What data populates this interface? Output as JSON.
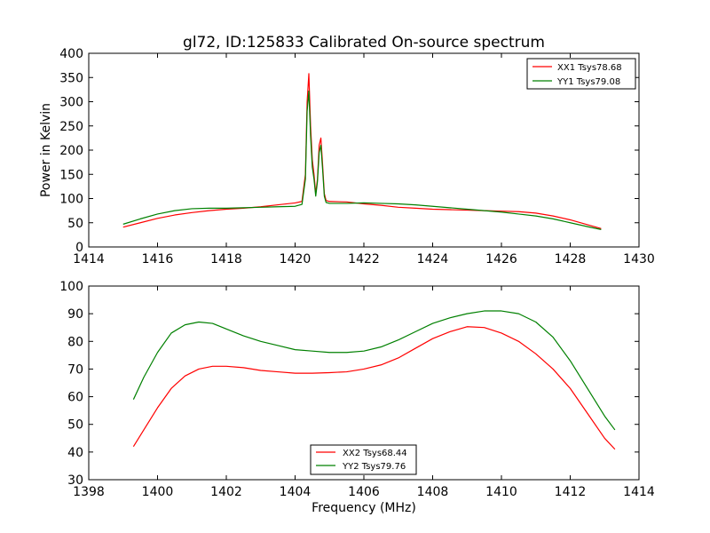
{
  "chart_data": [
    {
      "type": "line",
      "title": "gl72, ID:125833 Calibrated On-source spectrum",
      "xlabel": "",
      "ylabel": "Power in Kelvin",
      "xlim": [
        1414,
        1430
      ],
      "ylim": [
        0,
        400
      ],
      "xticks": [
        "1414",
        "1416",
        "1418",
        "1420",
        "1422",
        "1424",
        "1426",
        "1428",
        "1430"
      ],
      "yticks": [
        "0",
        "50",
        "100",
        "150",
        "200",
        "250",
        "300",
        "350",
        "400"
      ],
      "legend_position": "top-right",
      "grid": false,
      "series": [
        {
          "name": "XX1 Tsys78.68",
          "color": "#ff0000",
          "x": [
            1415.0,
            1415.5,
            1416.0,
            1416.5,
            1417.0,
            1417.5,
            1418.0,
            1418.5,
            1419.0,
            1419.5,
            1420.0,
            1420.2,
            1420.3,
            1420.35,
            1420.4,
            1420.45,
            1420.5,
            1420.55,
            1420.6,
            1420.65,
            1420.7,
            1420.75,
            1420.8,
            1420.85,
            1420.9,
            1421.0,
            1421.5,
            1422.0,
            1422.5,
            1423.0,
            1423.5,
            1424.0,
            1424.5,
            1425.0,
            1425.5,
            1426.0,
            1426.5,
            1427.0,
            1427.5,
            1428.0,
            1428.5,
            1428.9
          ],
          "y": [
            41,
            50,
            59,
            66,
            71,
            75,
            78,
            80,
            83,
            87,
            91,
            94,
            150,
            300,
            358,
            250,
            180,
            150,
            110,
            140,
            210,
            225,
            170,
            110,
            96,
            94,
            93,
            89,
            86,
            82,
            80,
            78,
            77,
            76,
            75,
            74,
            73,
            70,
            64,
            56,
            46,
            38
          ]
        },
        {
          "name": "YY1 Tsys79.08",
          "color": "#008000",
          "x": [
            1415.0,
            1415.5,
            1416.0,
            1416.5,
            1417.0,
            1417.5,
            1418.0,
            1418.5,
            1419.0,
            1419.5,
            1420.0,
            1420.2,
            1420.3,
            1420.35,
            1420.4,
            1420.45,
            1420.5,
            1420.55,
            1420.6,
            1420.65,
            1420.7,
            1420.75,
            1420.8,
            1420.85,
            1420.9,
            1421.0,
            1421.5,
            1422.0,
            1422.5,
            1423.0,
            1423.5,
            1424.0,
            1424.5,
            1425.0,
            1425.5,
            1426.0,
            1426.5,
            1427.0,
            1427.5,
            1428.0,
            1428.5,
            1428.9
          ],
          "y": [
            47,
            58,
            68,
            75,
            79,
            80,
            80,
            81,
            82,
            83,
            84,
            88,
            140,
            280,
            322,
            230,
            165,
            140,
            105,
            135,
            195,
            210,
            160,
            105,
            92,
            90,
            90,
            91,
            90,
            89,
            87,
            84,
            81,
            78,
            75,
            72,
            68,
            64,
            58,
            50,
            42,
            36
          ]
        }
      ]
    },
    {
      "type": "line",
      "title": "",
      "xlabel": "Frequency (MHz)",
      "ylabel": "",
      "xlim": [
        1398,
        1414
      ],
      "ylim": [
        30,
        100
      ],
      "xticks": [
        "1398",
        "1400",
        "1402",
        "1404",
        "1406",
        "1408",
        "1410",
        "1412",
        "1414"
      ],
      "yticks": [
        "30",
        "40",
        "50",
        "60",
        "70",
        "80",
        "90",
        "100"
      ],
      "legend_position": "bottom-center",
      "grid": false,
      "series": [
        {
          "name": "XX2 Tsys68.44",
          "color": "#ff0000",
          "x": [
            1399.3,
            1399.6,
            1400.0,
            1400.4,
            1400.8,
            1401.2,
            1401.6,
            1402.0,
            1402.5,
            1403.0,
            1403.5,
            1404.0,
            1404.5,
            1405.0,
            1405.5,
            1406.0,
            1406.5,
            1407.0,
            1407.5,
            1408.0,
            1408.5,
            1409.0,
            1409.5,
            1410.0,
            1410.5,
            1411.0,
            1411.5,
            1412.0,
            1412.5,
            1413.0,
            1413.3
          ],
          "y": [
            42,
            48,
            56,
            63,
            67.5,
            70,
            71,
            71,
            70.5,
            69.5,
            69,
            68.5,
            68.5,
            68.7,
            69,
            70,
            71.5,
            74,
            77.5,
            81,
            83.5,
            85.3,
            85,
            83,
            80,
            75.5,
            70,
            63,
            54,
            45,
            41
          ]
        },
        {
          "name": "YY2 Tsys79.76",
          "color": "#008000",
          "x": [
            1399.3,
            1399.6,
            1400.0,
            1400.4,
            1400.8,
            1401.2,
            1401.6,
            1402.0,
            1402.5,
            1403.0,
            1403.5,
            1404.0,
            1404.5,
            1405.0,
            1405.5,
            1406.0,
            1406.5,
            1407.0,
            1407.5,
            1408.0,
            1408.5,
            1409.0,
            1409.5,
            1410.0,
            1410.5,
            1411.0,
            1411.5,
            1412.0,
            1412.5,
            1413.0,
            1413.3
          ],
          "y": [
            59,
            67,
            76,
            83,
            86,
            87,
            86.5,
            84.5,
            82,
            80,
            78.5,
            77,
            76.5,
            76,
            76,
            76.5,
            78,
            80.5,
            83.5,
            86.5,
            88.5,
            90,
            91,
            91,
            90,
            87,
            81.5,
            73,
            63,
            53,
            48
          ]
        }
      ]
    }
  ]
}
